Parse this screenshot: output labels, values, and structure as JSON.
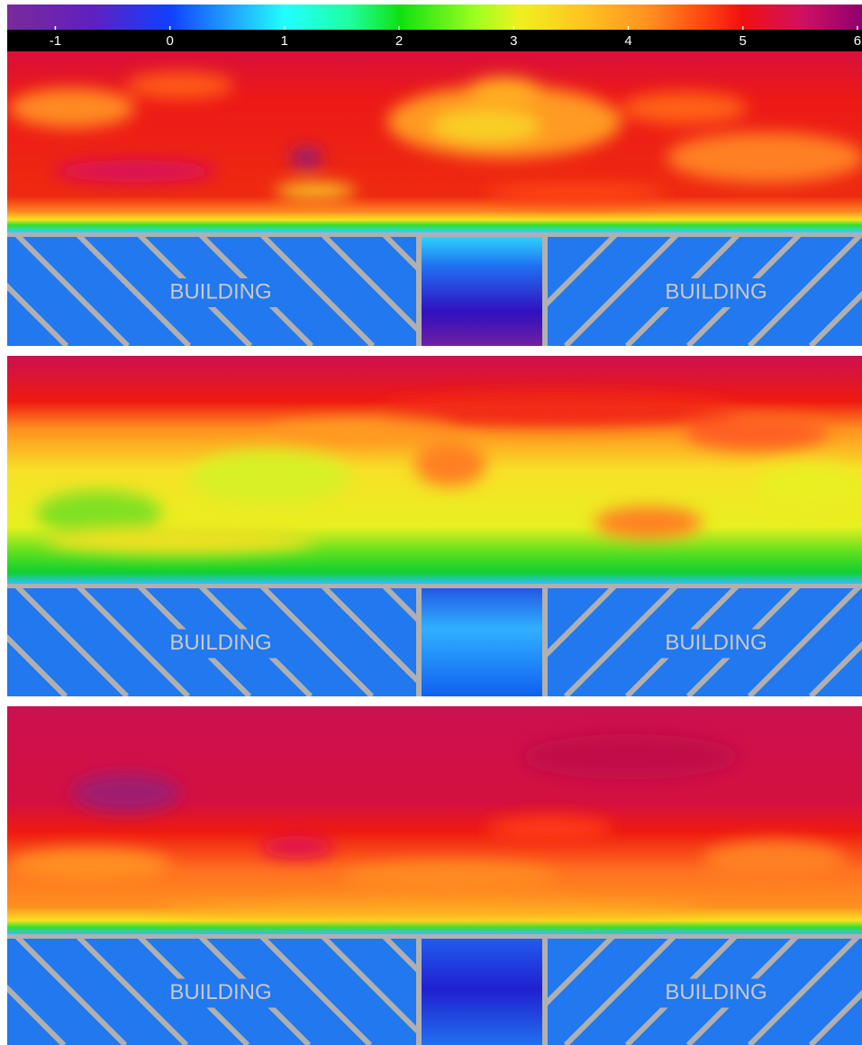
{
  "colorbar": {
    "ticks": [
      -1,
      0,
      1,
      2,
      3,
      4,
      5,
      6
    ],
    "lim": [
      -1.42,
      6.04
    ]
  },
  "panels": [
    {
      "buildings": [
        "BUILDING",
        "BUILDING"
      ]
    },
    {
      "buildings": [
        "BUILDING",
        "BUILDING"
      ]
    },
    {
      "buildings": [
        "BUILDING",
        "BUILDING"
      ]
    }
  ]
}
